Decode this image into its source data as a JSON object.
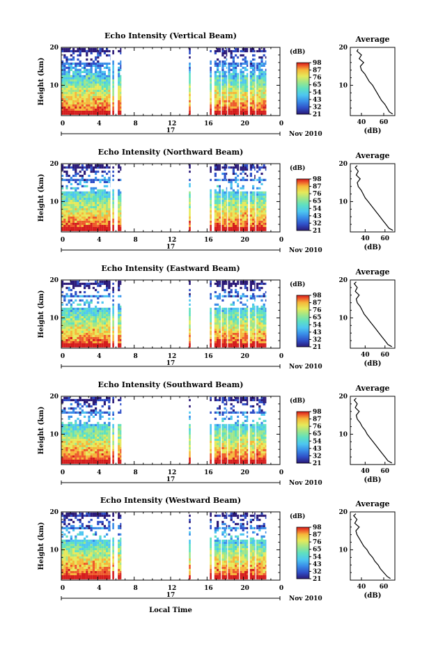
{
  "chart_data": [
    {
      "type": "heatmap",
      "title": "Echo Intensity (Vertical Beam)",
      "ylabel": "Height (km)",
      "x_ticks": [
        "0",
        "4",
        "8",
        "12",
        "16",
        "20",
        "0"
      ],
      "y_ticks": [
        "20",
        "10"
      ],
      "xlim": [
        0,
        24
      ],
      "ylim": [
        2,
        20
      ],
      "date_labels": [
        "17",
        "Nov 2010"
      ],
      "colorbar": {
        "unit": "(dB)",
        "ticks": [
          "98",
          "87",
          "76",
          "65",
          "54",
          "43",
          "32",
          "21"
        ],
        "range": [
          21,
          98
        ]
      },
      "data_columns_hours": [
        [
          0,
          5.4
        ],
        [
          5.6,
          5.8
        ],
        [
          6.2,
          6.6
        ],
        [
          14.0,
          14.2
        ],
        [
          16.3,
          16.5
        ],
        [
          16.8,
          17.5
        ],
        [
          17.6,
          18.2
        ],
        [
          18.3,
          19.5
        ],
        [
          19.6,
          20.5
        ],
        [
          20.7,
          21.3
        ],
        [
          21.4,
          22.5
        ]
      ],
      "average_profile": {
        "title": "Average",
        "xlabel": "(dB)",
        "x_ticks": [
          "40",
          "60"
        ],
        "y_ticks": [
          "20",
          "10"
        ],
        "xlim": [
          30,
          70
        ],
        "ylim": [
          2,
          20
        ],
        "heights_km": [
          2.4,
          3,
          4,
          5,
          6,
          7,
          8,
          9,
          10,
          11,
          12,
          13,
          14,
          15,
          16,
          17,
          18,
          19,
          19.5
        ],
        "values_db": [
          68,
          65,
          63,
          61,
          58,
          56,
          54,
          52,
          50,
          47,
          45,
          43,
          40,
          39,
          42,
          38,
          40,
          36,
          37
        ]
      }
    },
    {
      "type": "heatmap",
      "title": "Echo Intensity (Northward Beam)",
      "ylabel": "Height (km)",
      "x_ticks": [
        "0",
        "4",
        "8",
        "12",
        "16",
        "20",
        "0"
      ],
      "y_ticks": [
        "20",
        "10"
      ],
      "xlim": [
        0,
        24
      ],
      "ylim": [
        2,
        20
      ],
      "date_labels": [
        "17",
        "Nov 2010"
      ],
      "colorbar": {
        "unit": "(dB)",
        "ticks": [
          "98",
          "87",
          "76",
          "65",
          "54",
          "43",
          "32",
          "21"
        ],
        "range": [
          21,
          98
        ]
      },
      "data_columns_hours": [
        [
          0,
          5.4
        ],
        [
          5.6,
          5.8
        ],
        [
          6.2,
          6.6
        ],
        [
          14.0,
          14.2
        ],
        [
          16.3,
          16.5
        ],
        [
          16.8,
          17.5
        ],
        [
          17.6,
          18.2
        ],
        [
          18.3,
          19.5
        ],
        [
          19.6,
          20.5
        ],
        [
          20.7,
          21.3
        ],
        [
          21.4,
          22.5
        ]
      ],
      "average_profile": {
        "title": "Average",
        "xlabel": "(dB)",
        "x_ticks": [
          "40",
          "60"
        ],
        "y_ticks": [
          "20",
          "10"
        ],
        "xlim": [
          25,
          70
        ],
        "ylim": [
          2,
          20
        ],
        "heights_km": [
          2.4,
          3,
          4,
          5,
          6,
          7,
          8,
          9,
          10,
          11,
          12,
          13,
          14,
          15,
          16,
          17,
          18,
          19,
          19.5
        ],
        "values_db": [
          68,
          64,
          61,
          58,
          55,
          52,
          49,
          46,
          43,
          40,
          38,
          36,
          33,
          32,
          35,
          31,
          33,
          30,
          32
        ]
      }
    },
    {
      "type": "heatmap",
      "title": "Echo Intensity (Eastward Beam)",
      "ylabel": "Height (km)",
      "x_ticks": [
        "0",
        "4",
        "8",
        "12",
        "16",
        "20",
        "0"
      ],
      "y_ticks": [
        "20",
        "10"
      ],
      "xlim": [
        0,
        24
      ],
      "ylim": [
        2,
        20
      ],
      "date_labels": [
        "17",
        "Nov 2010"
      ],
      "colorbar": {
        "unit": "(dB)",
        "ticks": [
          "98",
          "87",
          "76",
          "65",
          "54",
          "43",
          "32",
          "21"
        ],
        "range": [
          21,
          98
        ]
      },
      "data_columns_hours": [
        [
          0,
          5.4
        ],
        [
          5.6,
          5.8
        ],
        [
          6.2,
          6.6
        ],
        [
          14.0,
          14.2
        ],
        [
          16.3,
          16.5
        ],
        [
          16.8,
          17.5
        ],
        [
          17.6,
          18.2
        ],
        [
          18.3,
          19.5
        ],
        [
          19.6,
          20.5
        ],
        [
          20.7,
          21.3
        ],
        [
          21.4,
          22.5
        ]
      ],
      "average_profile": {
        "title": "Average",
        "xlabel": "(dB)",
        "x_ticks": [
          "40",
          "60"
        ],
        "y_ticks": [
          "20",
          "10"
        ],
        "xlim": [
          25,
          70
        ],
        "ylim": [
          2,
          20
        ],
        "heights_km": [
          2.4,
          3,
          4,
          5,
          6,
          7,
          8,
          9,
          10,
          11,
          12,
          13,
          14,
          15,
          16,
          17,
          18,
          19,
          19.5
        ],
        "values_db": [
          67,
          63,
          60,
          57,
          54,
          51,
          48,
          45,
          42,
          39,
          37,
          35,
          32,
          31,
          34,
          30,
          32,
          29,
          31
        ]
      }
    },
    {
      "type": "heatmap",
      "title": "Echo Intensity (Southward Beam)",
      "ylabel": "Height (km)",
      "x_ticks": [
        "0",
        "4",
        "8",
        "12",
        "16",
        "20",
        "0"
      ],
      "y_ticks": [
        "20",
        "10"
      ],
      "xlim": [
        0,
        24
      ],
      "ylim": [
        2,
        20
      ],
      "date_labels": [
        "17",
        "Nov 2010"
      ],
      "colorbar": {
        "unit": "(dB)",
        "ticks": [
          "98",
          "87",
          "76",
          "65",
          "54",
          "43",
          "32",
          "21"
        ],
        "range": [
          21,
          98
        ]
      },
      "data_columns_hours": [
        [
          0,
          5.4
        ],
        [
          5.6,
          5.8
        ],
        [
          6.2,
          6.6
        ],
        [
          14.0,
          14.2
        ],
        [
          16.3,
          16.5
        ],
        [
          16.8,
          17.5
        ],
        [
          17.6,
          18.2
        ],
        [
          18.3,
          19.5
        ],
        [
          19.6,
          20.5
        ],
        [
          20.7,
          21.3
        ],
        [
          21.4,
          22.5
        ]
      ],
      "average_profile": {
        "title": "Average",
        "xlabel": "(dB)",
        "x_ticks": [
          "40",
          "60"
        ],
        "y_ticks": [
          "20",
          "10"
        ],
        "xlim": [
          25,
          70
        ],
        "ylim": [
          2,
          20
        ],
        "heights_km": [
          2.4,
          3,
          4,
          5,
          6,
          7,
          8,
          9,
          10,
          11,
          12,
          13,
          14,
          15,
          16,
          17,
          18,
          19,
          19.5
        ],
        "values_db": [
          67,
          63,
          60,
          57,
          54,
          51,
          48,
          45,
          42,
          40,
          37,
          35,
          32,
          31,
          34,
          30,
          32,
          29,
          31
        ]
      }
    },
    {
      "type": "heatmap",
      "title": "Echo Intensity (Westward Beam)",
      "ylabel": "Height (km)",
      "xlabel": "Local Time",
      "x_ticks": [
        "0",
        "4",
        "8",
        "12",
        "16",
        "20",
        "0"
      ],
      "y_ticks": [
        "20",
        "10"
      ],
      "xlim": [
        0,
        24
      ],
      "ylim": [
        2,
        20
      ],
      "date_labels": [
        "17",
        "Nov 2010"
      ],
      "colorbar": {
        "unit": "(dB)",
        "ticks": [
          "98",
          "87",
          "76",
          "65",
          "54",
          "43",
          "32",
          "21"
        ],
        "range": [
          21,
          98
        ]
      },
      "data_columns_hours": [
        [
          0,
          5.4
        ],
        [
          5.6,
          5.8
        ],
        [
          6.2,
          6.6
        ],
        [
          14.0,
          14.2
        ],
        [
          16.3,
          16.5
        ],
        [
          16.8,
          17.5
        ],
        [
          17.6,
          18.2
        ],
        [
          18.3,
          19.5
        ],
        [
          19.6,
          20.5
        ],
        [
          20.7,
          21.3
        ],
        [
          21.4,
          22.5
        ]
      ],
      "average_profile": {
        "title": "Average",
        "xlabel": "(dB)",
        "x_ticks": [
          "40",
          "60"
        ],
        "y_ticks": [
          "20",
          "10"
        ],
        "xlim": [
          30,
          70
        ],
        "ylim": [
          2,
          20
        ],
        "heights_km": [
          2.4,
          3,
          4,
          5,
          6,
          7,
          8,
          9,
          10,
          11,
          12,
          13,
          14,
          15,
          16,
          17,
          18,
          19,
          19.5
        ],
        "values_db": [
          66,
          63,
          60,
          57,
          55,
          52,
          50,
          47,
          45,
          42,
          40,
          38,
          36,
          35,
          38,
          34,
          36,
          33,
          35
        ]
      }
    }
  ],
  "colors": {
    "colormap": [
      "#2b1a78",
      "#2f4fc7",
      "#3a8ee8",
      "#4dc6f0",
      "#5fe0c0",
      "#9ee68a",
      "#e6e95a",
      "#f6b73a",
      "#ee5a2a",
      "#d41a1a"
    ]
  }
}
